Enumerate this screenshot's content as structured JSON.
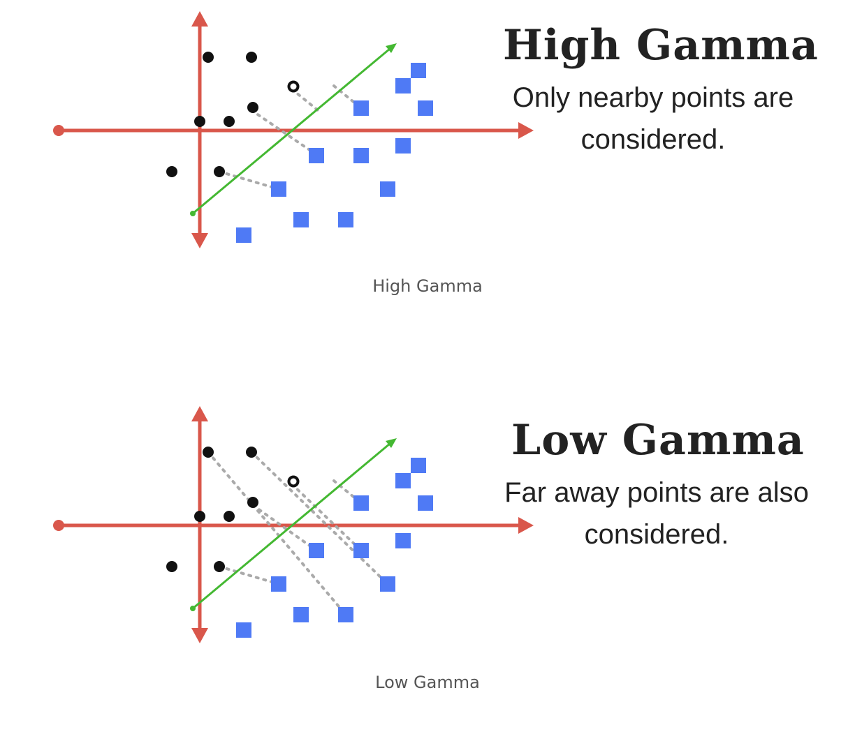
{
  "colors": {
    "axis": "#d9574b",
    "boundary": "#44b832",
    "class_a": "#111111",
    "class_b": "#4f7af5",
    "influence": "#aaaaaa"
  },
  "figures": [
    {
      "id": "high",
      "headline": "High Gamma",
      "description": "Only nearby points are considered.",
      "caption": "High Gamma",
      "black_points": [
        [
          298,
          82
        ],
        [
          360,
          82
        ],
        [
          420,
          124
        ],
        [
          362,
          154
        ],
        [
          286,
          174
        ],
        [
          328,
          174
        ],
        [
          246,
          246
        ],
        [
          314,
          246
        ]
      ],
      "blue_points": [
        [
          599,
          101
        ],
        [
          577,
          123
        ],
        [
          517,
          155
        ],
        [
          609,
          155
        ],
        [
          577,
          209
        ],
        [
          453,
          223
        ],
        [
          517,
          223
        ],
        [
          399,
          271
        ],
        [
          555,
          271
        ],
        [
          431,
          315
        ],
        [
          495,
          315
        ],
        [
          349,
          337
        ]
      ],
      "influence_lines": [
        [
          [
            418,
            128
          ],
          [
            455,
            158
          ]
        ],
        [
          [
            360,
            158
          ],
          [
            455,
            223
          ]
        ],
        [
          [
            478,
            123
          ],
          [
            517,
            155
          ]
        ],
        [
          [
            314,
            246
          ],
          [
            399,
            271
          ]
        ]
      ]
    },
    {
      "id": "low",
      "headline": "Low Gamma",
      "description": "Far away points are also considered.",
      "caption": "Low Gamma",
      "black_points": [
        [
          298,
          82
        ],
        [
          360,
          82
        ],
        [
          420,
          124
        ],
        [
          362,
          154
        ],
        [
          286,
          174
        ],
        [
          328,
          174
        ],
        [
          246,
          246
        ],
        [
          314,
          246
        ]
      ],
      "blue_points": [
        [
          599,
          101
        ],
        [
          577,
          123
        ],
        [
          517,
          155
        ],
        [
          609,
          155
        ],
        [
          577,
          209
        ],
        [
          453,
          223
        ],
        [
          517,
          223
        ],
        [
          399,
          271
        ],
        [
          555,
          271
        ],
        [
          431,
          315
        ],
        [
          495,
          315
        ],
        [
          349,
          337
        ]
      ],
      "influence_lines": [
        [
          [
            298,
            82
          ],
          [
            495,
            315
          ]
        ],
        [
          [
            360,
            82
          ],
          [
            555,
            271
          ]
        ],
        [
          [
            418,
            128
          ],
          [
            517,
            223
          ]
        ],
        [
          [
            478,
            123
          ],
          [
            517,
            155
          ]
        ],
        [
          [
            362,
            158
          ],
          [
            453,
            223
          ]
        ],
        [
          [
            314,
            246
          ],
          [
            399,
            271
          ]
        ]
      ]
    }
  ]
}
